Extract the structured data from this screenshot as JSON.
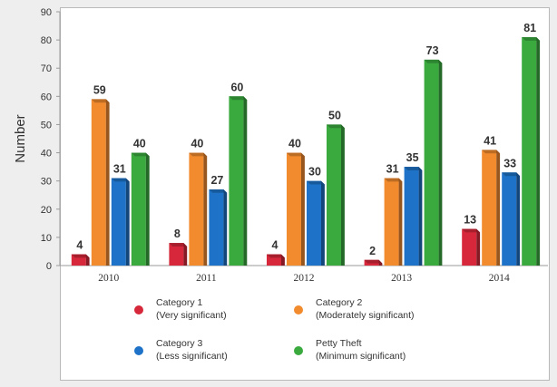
{
  "chart_data": {
    "type": "bar",
    "title": "",
    "xlabel": "",
    "ylabel": "Number",
    "ylim": [
      0,
      90
    ],
    "yticks": [
      0,
      10,
      20,
      30,
      40,
      50,
      60,
      70,
      80,
      90
    ],
    "grid": false,
    "legend_position": "bottom",
    "categories": [
      "2010",
      "2011",
      "2012",
      "2013",
      "2014"
    ],
    "series": [
      {
        "name": "Category 1",
        "subtitle": "(Very significant)",
        "color": "#d6283a",
        "values": [
          4,
          8,
          4,
          2,
          13
        ]
      },
      {
        "name": "Category 2",
        "subtitle": "(Moderately significant)",
        "color": "#f28a2e",
        "values": [
          59,
          40,
          40,
          31,
          41
        ]
      },
      {
        "name": "Category 3",
        "subtitle": "(Less significant)",
        "color": "#1e73c8",
        "values": [
          31,
          27,
          30,
          35,
          33
        ]
      },
      {
        "name": "Petty Theft",
        "subtitle": "(Minimum significant)",
        "color": "#3aaa3f",
        "values": [
          40,
          60,
          50,
          73,
          81
        ]
      }
    ]
  }
}
